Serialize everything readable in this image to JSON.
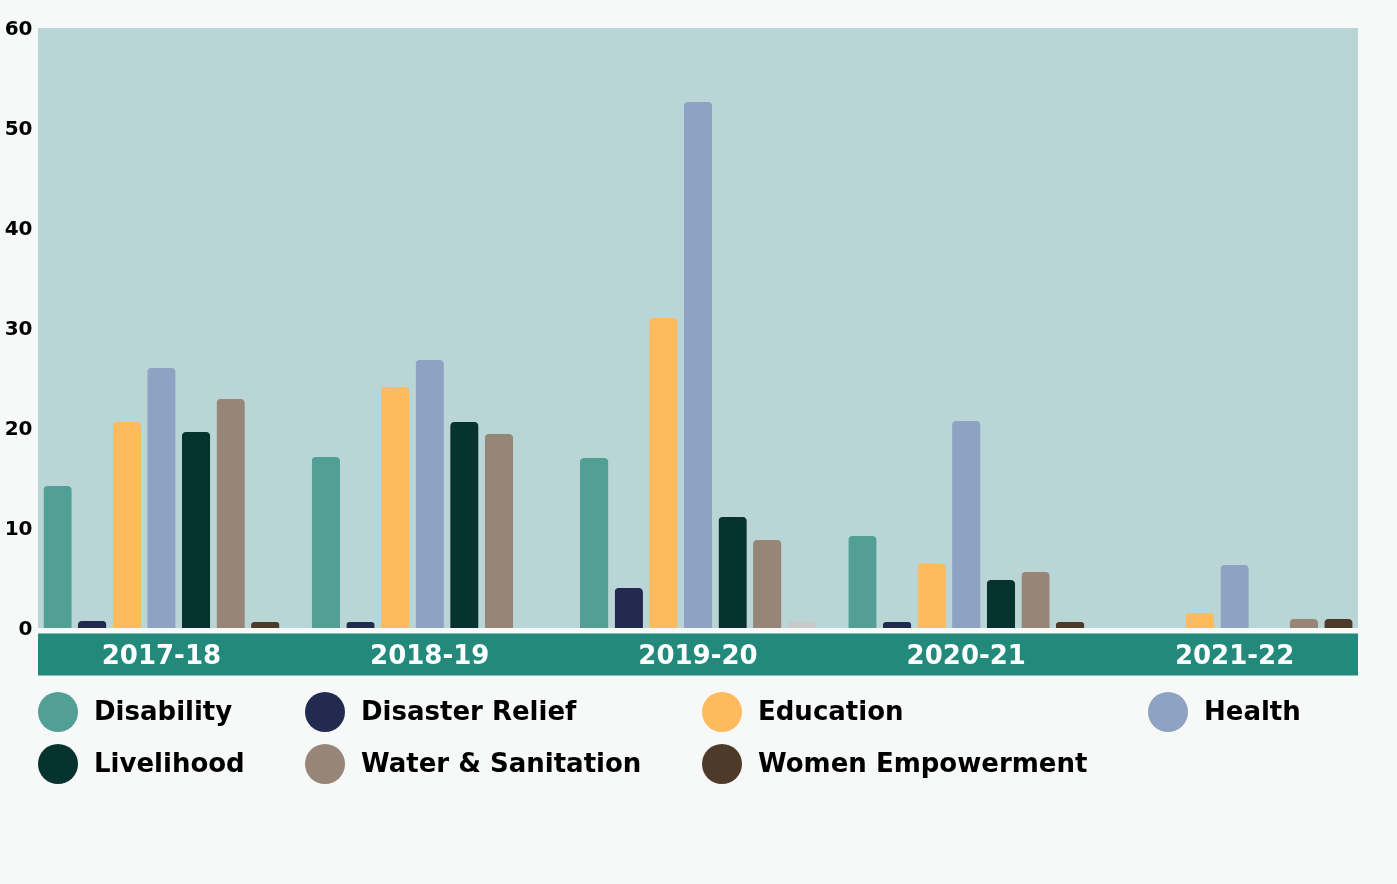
{
  "chart_data": {
    "type": "bar",
    "categories": [
      "2017-18",
      "2018-19",
      "2019-20",
      "2020-21",
      "2021-22"
    ],
    "series": [
      {
        "name": "Disability",
        "color": "#52a095",
        "values": [
          14.2,
          17.1,
          17,
          9.2,
          null
        ]
      },
      {
        "name": "Disaster Relief",
        "color": "#232a50",
        "values": [
          0.7,
          0.6,
          4,
          0.6,
          null
        ]
      },
      {
        "name": "Education",
        "color": "#fdbb5e",
        "values": [
          20.6,
          24.1,
          31,
          6.4,
          1.5
        ]
      },
      {
        "name": "Health",
        "color": "#8ea2c4",
        "values": [
          26,
          26.8,
          52.6,
          20.7,
          6.3
        ]
      },
      {
        "name": "Livelihood",
        "color": "#07332e",
        "values": [
          19.6,
          20.6,
          11.1,
          4.8,
          null
        ]
      },
      {
        "name": "Water & Sanitation",
        "color": "#978677",
        "values": [
          22.9,
          19.4,
          8.8,
          5.6,
          0.9
        ]
      },
      {
        "name": "Women Empowerment",
        "color": "#4e3a29",
        "colors": [
          "#4e3a29",
          "#4e3a29",
          "#c8c8c8",
          "#4e3a29",
          "#4e3a29"
        ],
        "values": [
          0.6,
          null,
          0.6,
          0.6,
          0.9
        ]
      }
    ],
    "ylim": [
      0,
      60
    ],
    "yticks": [
      0,
      10,
      20,
      30,
      40,
      50,
      60
    ],
    "grid": false,
    "legend": "bottom"
  }
}
